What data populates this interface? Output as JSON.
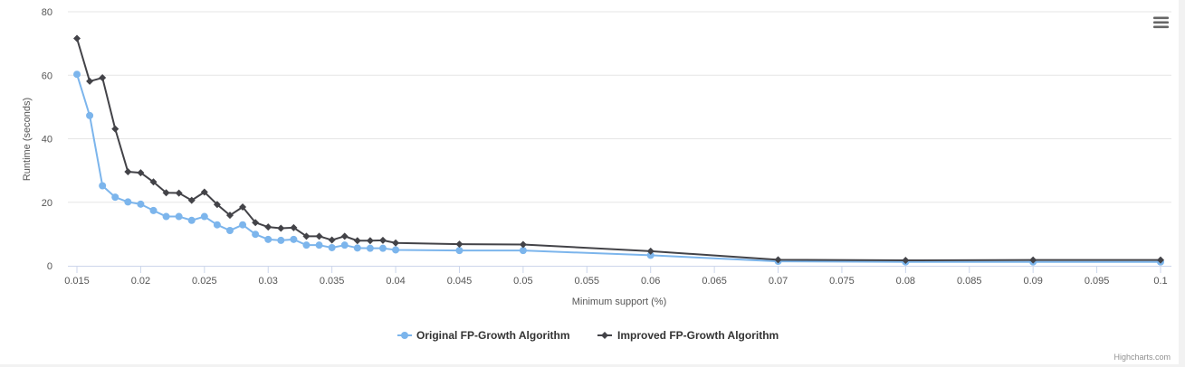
{
  "chart_data": {
    "type": "line",
    "title": "",
    "xlabel": "Minimum support (%)",
    "ylabel": "Runtime (seconds)",
    "xlim": [
      0.015,
      0.1
    ],
    "ylim": [
      0,
      80
    ],
    "x_ticks": [
      "0.015",
      "0.02",
      "0.025",
      "0.03",
      "0.035",
      "0.04",
      "0.045",
      "0.05",
      "0.055",
      "0.06",
      "0.065",
      "0.07",
      "0.075",
      "0.08",
      "0.085",
      "0.09",
      "0.095",
      "0.1"
    ],
    "y_ticks": [
      "0",
      "20",
      "40",
      "60",
      "80"
    ],
    "grid": true,
    "legend_position": "bottom-center",
    "series": [
      {
        "name": "Original FP-Growth Algorithm",
        "color": "#7cb5ec",
        "marker": "circle",
        "points": [
          [
            0.015,
            60.3
          ],
          [
            0.016,
            47.3
          ],
          [
            0.017,
            25.2
          ],
          [
            0.018,
            21.6
          ],
          [
            0.019,
            20.1
          ],
          [
            0.02,
            19.4
          ],
          [
            0.021,
            17.4
          ],
          [
            0.022,
            15.5
          ],
          [
            0.023,
            15.5
          ],
          [
            0.024,
            14.3
          ],
          [
            0.025,
            15.5
          ],
          [
            0.026,
            12.9
          ],
          [
            0.027,
            11.1
          ],
          [
            0.028,
            12.9
          ],
          [
            0.029,
            9.9
          ],
          [
            0.03,
            8.3
          ],
          [
            0.031,
            8.0
          ],
          [
            0.032,
            8.3
          ],
          [
            0.033,
            6.5
          ],
          [
            0.034,
            6.5
          ],
          [
            0.035,
            5.7
          ],
          [
            0.036,
            6.5
          ],
          [
            0.037,
            5.6
          ],
          [
            0.038,
            5.5
          ],
          [
            0.039,
            5.5
          ],
          [
            0.04,
            5.0
          ],
          [
            0.045,
            4.8
          ],
          [
            0.05,
            4.8
          ],
          [
            0.06,
            3.3
          ],
          [
            0.07,
            1.4
          ],
          [
            0.08,
            1.2
          ],
          [
            0.09,
            1.2
          ],
          [
            0.1,
            1.2
          ]
        ]
      },
      {
        "name": "Improved FP-Growth Algorithm",
        "color": "#434348",
        "marker": "diamond",
        "points": [
          [
            0.015,
            71.6
          ],
          [
            0.016,
            58.1
          ],
          [
            0.017,
            59.2
          ],
          [
            0.018,
            43.1
          ],
          [
            0.019,
            29.6
          ],
          [
            0.02,
            29.3
          ],
          [
            0.021,
            26.4
          ],
          [
            0.022,
            23.0
          ],
          [
            0.023,
            22.9
          ],
          [
            0.024,
            20.6
          ],
          [
            0.025,
            23.2
          ],
          [
            0.026,
            19.3
          ],
          [
            0.027,
            15.9
          ],
          [
            0.028,
            18.5
          ],
          [
            0.029,
            13.6
          ],
          [
            0.03,
            12.2
          ],
          [
            0.031,
            11.8
          ],
          [
            0.032,
            12.0
          ],
          [
            0.033,
            9.3
          ],
          [
            0.034,
            9.3
          ],
          [
            0.035,
            8.1
          ],
          [
            0.036,
            9.3
          ],
          [
            0.037,
            7.9
          ],
          [
            0.038,
            7.9
          ],
          [
            0.039,
            8.0
          ],
          [
            0.04,
            7.2
          ],
          [
            0.045,
            6.8
          ],
          [
            0.05,
            6.7
          ],
          [
            0.06,
            4.6
          ],
          [
            0.07,
            1.9
          ],
          [
            0.08,
            1.7
          ],
          [
            0.09,
            1.8
          ],
          [
            0.1,
            1.8
          ]
        ]
      }
    ]
  },
  "menu": {
    "icon": "hamburger-menu-icon"
  },
  "credits": {
    "text": "Highcharts.com"
  }
}
